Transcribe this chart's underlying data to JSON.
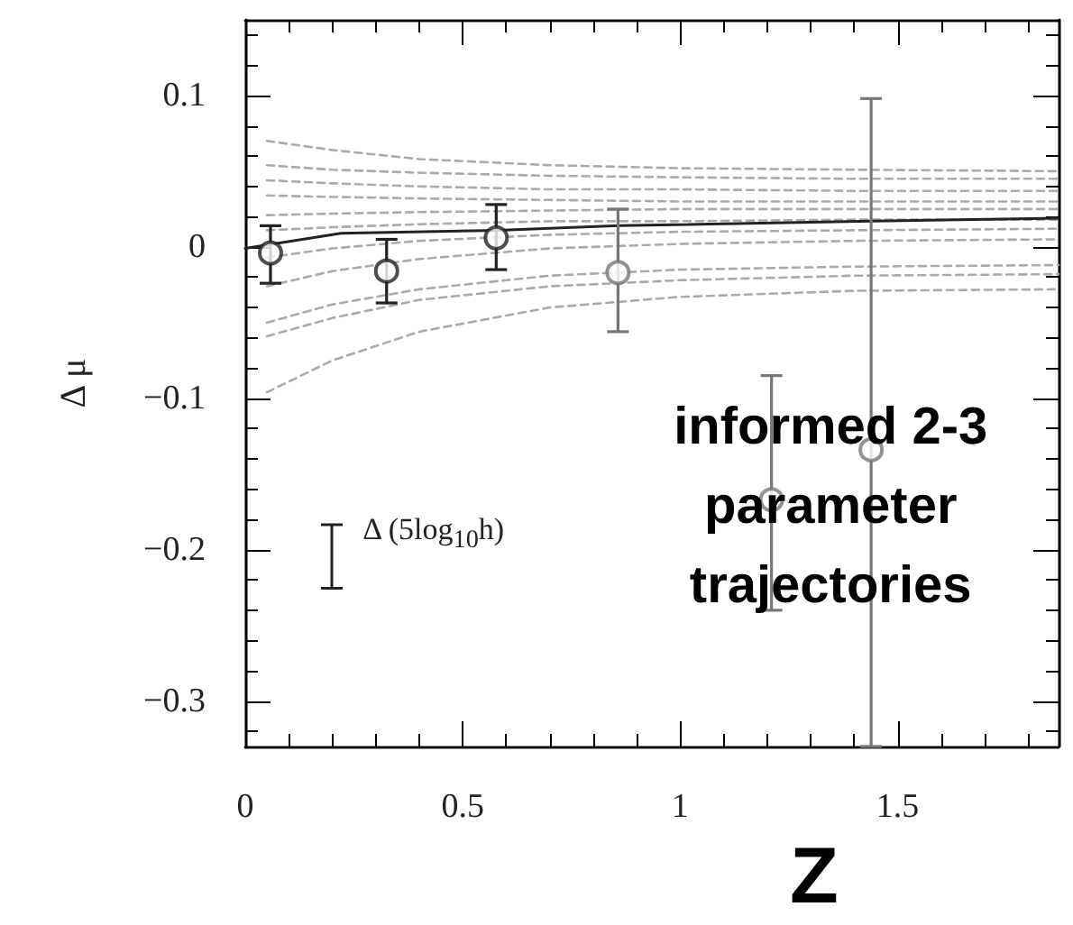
{
  "chart_data": {
    "type": "scatter",
    "xlabel": "Z",
    "ylabel": "Δ μ",
    "xlim": [
      0,
      1.87
    ],
    "xticks": [
      0,
      0.5,
      1,
      1.5
    ],
    "ylim": [
      -0.33,
      0.15
    ],
    "yticks": [
      -0.3,
      -0.2,
      -0.1,
      0,
      0.1
    ],
    "grid": false,
    "marker": "circle",
    "annotations": [
      "Δ (5log$_{10}$h)",
      "informed 2-3 parameter trajectories"
    ],
    "series": [
      {
        "color": "#222222",
        "x": [
          0.058,
          0.325,
          0.577
        ],
        "values": [
          -0.004,
          -0.016,
          0.006
        ],
        "errors": [
          [
            -0.024,
            0.014
          ],
          [
            -0.037,
            0.005
          ],
          [
            -0.015,
            0.028
          ]
        ]
      },
      {
        "color": "#777777",
        "x": [
          0.857,
          1.21,
          1.439
        ],
        "values": [
          -0.017,
          -0.167,
          -0.134
        ],
        "errors": [
          [
            -0.056,
            0.025
          ],
          [
            -0.24,
            -0.085
          ],
          [
            -0.33,
            0.098
          ]
        ]
      },
      {
        "type": "line",
        "color": "#222222",
        "line_style": "solid",
        "marker": "none",
        "x": [
          0,
          0.22,
          0.58,
          0.86,
          1.44,
          1.87
        ],
        "values": [
          -0.001,
          0.009,
          0.011,
          0.014,
          0.017,
          0.019
        ]
      },
      {
        "type": "line",
        "color": "#aaaaaa",
        "line_style": "dashed",
        "marker": "none",
        "x": [
          0.05,
          0.2,
          0.4,
          0.7,
          1.0,
          1.4,
          1.87
        ],
        "values": [
          0.07,
          0.064,
          0.058,
          0.054,
          0.052,
          0.051,
          0.05
        ]
      },
      {
        "type": "line",
        "color": "#aaaaaa",
        "line_style": "dashed",
        "marker": "none",
        "x": [
          0.05,
          0.2,
          0.4,
          0.7,
          1.0,
          1.4,
          1.87
        ],
        "values": [
          0.054,
          0.051,
          0.049,
          0.047,
          0.046,
          0.045,
          0.045
        ]
      },
      {
        "type": "line",
        "color": "#aaaaaa",
        "line_style": "dashed",
        "marker": "none",
        "x": [
          0.05,
          0.2,
          0.4,
          0.7,
          1.0,
          1.4,
          1.87
        ],
        "values": [
          0.044,
          0.042,
          0.04,
          0.038,
          0.038,
          0.037,
          0.037
        ]
      },
      {
        "type": "line",
        "color": "#aaaaaa",
        "line_style": "dashed",
        "marker": "none",
        "x": [
          0.05,
          0.2,
          0.4,
          0.7,
          1.0,
          1.4,
          1.87
        ],
        "values": [
          0.034,
          0.033,
          0.032,
          0.031,
          0.03,
          0.03,
          0.03
        ]
      },
      {
        "type": "line",
        "color": "#aaaaaa",
        "line_style": "dashed",
        "marker": "none",
        "x": [
          0.05,
          0.2,
          0.4,
          0.7,
          1.0,
          1.4,
          1.87
        ],
        "values": [
          0.021,
          0.022,
          0.023,
          0.024,
          0.025,
          0.025,
          0.025
        ]
      },
      {
        "type": "line",
        "color": "#aaaaaa",
        "line_style": "dashed",
        "marker": "none",
        "x": [
          0.05,
          0.2,
          0.4,
          0.7,
          1.0,
          1.4,
          1.87
        ],
        "values": [
          0.011,
          0.013,
          0.015,
          0.017,
          0.017,
          0.018,
          0.018
        ]
      },
      {
        "type": "line",
        "color": "#aaaaaa",
        "line_style": "dashed",
        "marker": "none",
        "x": [
          0.05,
          0.2,
          0.4,
          0.7,
          1.0,
          1.4,
          1.87
        ],
        "values": [
          -0.007,
          -0.001,
          0.004,
          0.008,
          0.01,
          0.011,
          0.012
        ]
      },
      {
        "type": "line",
        "color": "#aaaaaa",
        "line_style": "dashed",
        "marker": "none",
        "x": [
          0.05,
          0.2,
          0.4,
          0.7,
          1.0,
          1.4,
          1.87
        ],
        "values": [
          -0.026,
          -0.016,
          -0.008,
          -0.001,
          0.002,
          0.004,
          0.005
        ]
      },
      {
        "type": "line",
        "color": "#aaaaaa",
        "line_style": "dashed",
        "marker": "none",
        "x": [
          0.05,
          0.2,
          0.4,
          0.7,
          1.0,
          1.4,
          1.87
        ],
        "values": [
          -0.05,
          -0.038,
          -0.028,
          -0.019,
          -0.015,
          -0.013,
          -0.012
        ]
      },
      {
        "type": "line",
        "color": "#aaaaaa",
        "line_style": "dashed",
        "marker": "none",
        "x": [
          0.05,
          0.2,
          0.4,
          0.7,
          1.0,
          1.4,
          1.87
        ],
        "values": [
          -0.059,
          -0.047,
          -0.035,
          -0.026,
          -0.022,
          -0.019,
          -0.018
        ]
      },
      {
        "type": "line",
        "color": "#aaaaaa",
        "line_style": "dashed",
        "marker": "none",
        "x": [
          0.05,
          0.2,
          0.4,
          0.7,
          1.0,
          1.4,
          1.87
        ],
        "values": [
          -0.096,
          -0.075,
          -0.056,
          -0.04,
          -0.033,
          -0.029,
          -0.028
        ]
      }
    ]
  }
}
